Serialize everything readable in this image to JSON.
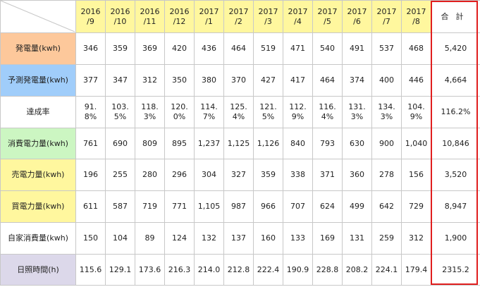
{
  "months": [
    {
      "year": "2016",
      "month": "/9"
    },
    {
      "year": "2016",
      "month": "/10"
    },
    {
      "year": "2016",
      "month": "/11"
    },
    {
      "year": "2016",
      "month": "/12"
    },
    {
      "year": "2017",
      "month": "/1"
    },
    {
      "year": "2017",
      "month": "/2"
    },
    {
      "year": "2017",
      "month": "/3"
    },
    {
      "year": "2017",
      "month": "/4"
    },
    {
      "year": "2017",
      "month": "/5"
    },
    {
      "year": "2017",
      "month": "/6"
    },
    {
      "year": "2017",
      "month": "/7"
    },
    {
      "year": "2017",
      "month": "/8"
    }
  ],
  "total_header": "合計",
  "rows": [
    {
      "label": "発電量(kwh)",
      "color": "#fdc89b",
      "cells": [
        "346",
        "359",
        "369",
        "420",
        "436",
        "464",
        "519",
        "471",
        "540",
        "491",
        "537",
        "468"
      ],
      "total": "5,420"
    },
    {
      "label": "予測発電量(kwh)",
      "color": "#a0cdfa",
      "cells": [
        "377",
        "347",
        "312",
        "350",
        "380",
        "370",
        "427",
        "417",
        "464",
        "374",
        "400",
        "446"
      ],
      "total": "4,664"
    },
    {
      "label": "達成率",
      "color": "#ffffff",
      "split": true,
      "cells": [
        [
          "91.",
          "8%"
        ],
        [
          "103.",
          "5%"
        ],
        [
          "118.",
          "3%"
        ],
        [
          "120.",
          "0%"
        ],
        [
          "114.",
          "7%"
        ],
        [
          "125.",
          "4%"
        ],
        [
          "121.",
          "5%"
        ],
        [
          "112.",
          "9%"
        ],
        [
          "116.",
          "4%"
        ],
        [
          "131.",
          "3%"
        ],
        [
          "134.",
          "3%"
        ],
        [
          "104.",
          "9%"
        ]
      ],
      "total": "116.2%"
    },
    {
      "label": "消費電力量(kwh)",
      "color": "#ccf6c2",
      "cells": [
        "761",
        "690",
        "809",
        "895",
        "1,237",
        "1,125",
        "1,126",
        "840",
        "793",
        "630",
        "900",
        "1,040"
      ],
      "total": "10,846"
    },
    {
      "label": "売電力量(kwh)",
      "color": "#fff79e",
      "cells": [
        "196",
        "255",
        "280",
        "296",
        "304",
        "327",
        "359",
        "338",
        "371",
        "360",
        "278",
        "156"
      ],
      "total": "3,520"
    },
    {
      "label": "買電力量(kwh)",
      "color": "#fff79e",
      "cells": [
        "611",
        "587",
        "719",
        "771",
        "1,105",
        "987",
        "966",
        "707",
        "624",
        "499",
        "642",
        "729"
      ],
      "total": "8,947"
    },
    {
      "label": "自家消費量(kwh)",
      "color": "#ffffff",
      "cells": [
        "150",
        "104",
        "89",
        "124",
        "132",
        "137",
        "160",
        "133",
        "169",
        "131",
        "259",
        "312"
      ],
      "total": "1,900"
    },
    {
      "label": "日照時間(h)",
      "color": "#dcd8ea",
      "cells": [
        "115.6",
        "129.1",
        "173.6",
        "216.3",
        "214.0",
        "212.8",
        "222.4",
        "190.9",
        "228.8",
        "208.2",
        "224.1",
        "179.4"
      ],
      "total": "2315.2"
    }
  ]
}
